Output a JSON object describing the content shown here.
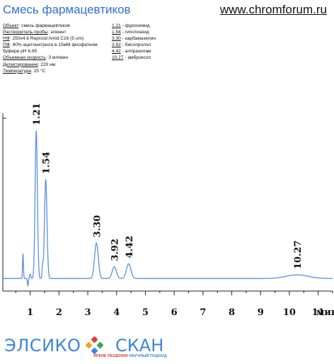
{
  "header": {
    "title": "Смесь фармацевтиков",
    "site": "www.chromforum.ru"
  },
  "conditions": [
    {
      "key": "Объект",
      "value": "смесь фармацевтиков"
    },
    {
      "key": "Растворитель пробы",
      "value": "элюент"
    },
    {
      "key": "НФ",
      "value": "250x4.6 Reprosil Amid C16  (5 um)"
    },
    {
      "key": "ПФ",
      "value": "40% ацетонитрила в 15мМ фосфатном"
    },
    {
      "key": "",
      "value": "буфере pH 6.95"
    },
    {
      "key": "Объемная скорость",
      "value": "3 мл/мин"
    },
    {
      "key": "Детектирование",
      "value": "220 нм"
    },
    {
      "key": "Температура",
      "value": "25 °C"
    }
  ],
  "peak_legend": [
    {
      "time": "1.21",
      "name": "фуросемид"
    },
    {
      "time": "1.54",
      "name": "гипотиазид"
    },
    {
      "time": "3.30",
      "name": "карбамазепин"
    },
    {
      "time": "3.92",
      "name": "бисопролол"
    },
    {
      "time": "4.42",
      "name": "алпразолам"
    },
    {
      "time": "10.27",
      "name": "амброксол"
    }
  ],
  "chart_data": {
    "type": "line",
    "xlabel": "мин",
    "x_ticks": [
      1,
      2,
      3,
      4,
      5,
      6,
      7,
      8,
      9,
      10,
      11
    ],
    "xlim": [
      0.05,
      11.5
    ],
    "ylim": [
      -0.08,
      1.12
    ],
    "baseline": 0,
    "series_color": "#5b8fe6",
    "peaks": [
      {
        "label": "1.21",
        "rt": 1.21,
        "height": 1.0
      },
      {
        "label": "1.54",
        "rt": 1.54,
        "height": 0.67
      },
      {
        "label": "3.30",
        "rt": 3.3,
        "height": 0.24
      },
      {
        "label": "3.92",
        "rt": 3.92,
        "height": 0.08
      },
      {
        "label": "4.42",
        "rt": 4.42,
        "height": 0.1
      },
      {
        "label": "10.27",
        "rt": 10.27,
        "height": 0.025
      }
    ]
  },
  "logos": {
    "left": "ЭЛСИКО",
    "right": "СКАН",
    "tagline_red": "ЯРКИЕ РЕШЕНИЯ",
    "tagline_blue": "НАУЧНЫЙ ПОДХОД"
  },
  "colors": {
    "title": "#2f6fd3",
    "trace": "#5b8fe6",
    "logo": "#3b86d8",
    "tagline_red": "#e23a2f"
  }
}
